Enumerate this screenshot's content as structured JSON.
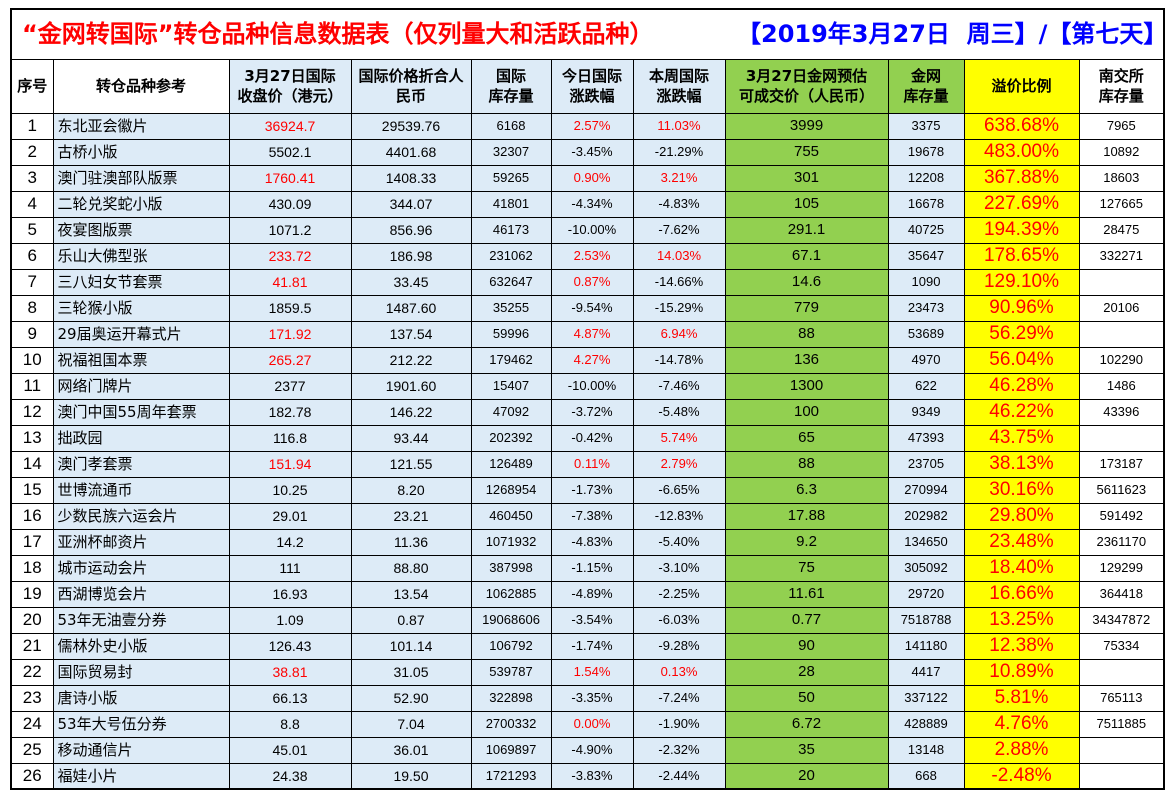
{
  "title": {
    "main": "“金网转国际”转仓品种信息数据表（仅列量大和活跃品种）",
    "date": "【2019年3月27日  周三】/【第七天】"
  },
  "table": {
    "headers": {
      "no": "序号",
      "name": "转仓品种参考",
      "close_hkd": "3月27日国际\n收盘价（港元）",
      "close_cny": "国际价格折合人\n民币",
      "intl_stock": "国际\n库存量",
      "day_chg": "今日国际\n涨跌幅",
      "week_chg": "本周国际\n涨跌幅",
      "jw_price": "3月27日金网预估\n可成交价（人民币）",
      "jw_stock": "金网\n库存量",
      "premium": "溢价比例",
      "nj_stock": "南交所\n库存量"
    },
    "rows": [
      {
        "no": "1",
        "name": "东北亚会徽片",
        "close_hkd": "36924.7",
        "close_cny": "29539.76",
        "intl_stock": "6168",
        "day_chg": "2.57%",
        "week_chg": "11.03%",
        "jw_price": "3999",
        "jw_stock": "3375",
        "premium": "638.68%",
        "nj_stock": "7965"
      },
      {
        "no": "2",
        "name": "古桥小版",
        "close_hkd": "5502.1",
        "close_cny": "4401.68",
        "intl_stock": "32307",
        "day_chg": "-3.45%",
        "week_chg": "-21.29%",
        "jw_price": "755",
        "jw_stock": "19678",
        "premium": "483.00%",
        "nj_stock": "10892"
      },
      {
        "no": "3",
        "name": "澳门驻澳部队版票",
        "close_hkd": "1760.41",
        "close_cny": "1408.33",
        "intl_stock": "59265",
        "day_chg": "0.90%",
        "week_chg": "3.21%",
        "jw_price": "301",
        "jw_stock": "12208",
        "premium": "367.88%",
        "nj_stock": "18603"
      },
      {
        "no": "4",
        "name": "二轮兑奖蛇小版",
        "close_hkd": "430.09",
        "close_cny": "344.07",
        "intl_stock": "41801",
        "day_chg": "-4.34%",
        "week_chg": "-4.83%",
        "jw_price": "105",
        "jw_stock": "16678",
        "premium": "227.69%",
        "nj_stock": "127665"
      },
      {
        "no": "5",
        "name": "夜宴图版票",
        "close_hkd": "1071.2",
        "close_cny": "856.96",
        "intl_stock": "46173",
        "day_chg": "-10.00%",
        "week_chg": "-7.62%",
        "jw_price": "291.1",
        "jw_stock": "40725",
        "premium": "194.39%",
        "nj_stock": "28475"
      },
      {
        "no": "6",
        "name": "乐山大佛型张",
        "close_hkd": "233.72",
        "close_cny": "186.98",
        "intl_stock": "231062",
        "day_chg": "2.53%",
        "week_chg": "14.03%",
        "jw_price": "67.1",
        "jw_stock": "35647",
        "premium": "178.65%",
        "nj_stock": "332271"
      },
      {
        "no": "7",
        "name": "三八妇女节套票",
        "close_hkd": "41.81",
        "close_cny": "33.45",
        "intl_stock": "632647",
        "day_chg": "0.87%",
        "week_chg": "-14.66%",
        "jw_price": "14.6",
        "jw_stock": "1090",
        "premium": "129.10%",
        "nj_stock": ""
      },
      {
        "no": "8",
        "name": "三轮猴小版",
        "close_hkd": "1859.5",
        "close_cny": "1487.60",
        "intl_stock": "35255",
        "day_chg": "-9.54%",
        "week_chg": "-15.29%",
        "jw_price": "779",
        "jw_stock": "23473",
        "premium": "90.96%",
        "nj_stock": "20106"
      },
      {
        "no": "9",
        "name": "29届奥运开幕式片",
        "close_hkd": "171.92",
        "close_cny": "137.54",
        "intl_stock": "59996",
        "day_chg": "4.87%",
        "week_chg": "6.94%",
        "jw_price": "88",
        "jw_stock": "53689",
        "premium": "56.29%",
        "nj_stock": ""
      },
      {
        "no": "10",
        "name": "祝福祖国本票",
        "close_hkd": "265.27",
        "close_cny": "212.22",
        "intl_stock": "179462",
        "day_chg": "4.27%",
        "week_chg": "-14.78%",
        "jw_price": "136",
        "jw_stock": "4970",
        "premium": "56.04%",
        "nj_stock": "102290"
      },
      {
        "no": "11",
        "name": "网络门牌片",
        "close_hkd": "2377",
        "close_cny": "1901.60",
        "intl_stock": "15407",
        "day_chg": "-10.00%",
        "week_chg": "-7.46%",
        "jw_price": "1300",
        "jw_stock": "622",
        "premium": "46.28%",
        "nj_stock": "1486"
      },
      {
        "no": "12",
        "name": "澳门中国55周年套票",
        "close_hkd": "182.78",
        "close_cny": "146.22",
        "intl_stock": "47092",
        "day_chg": "-3.72%",
        "week_chg": "-5.48%",
        "jw_price": "100",
        "jw_stock": "9349",
        "premium": "46.22%",
        "nj_stock": "43396"
      },
      {
        "no": "13",
        "name": "拙政园",
        "close_hkd": "116.8",
        "close_cny": "93.44",
        "intl_stock": "202392",
        "day_chg": "-0.42%",
        "week_chg": "5.74%",
        "jw_price": "65",
        "jw_stock": "47393",
        "premium": "43.75%",
        "nj_stock": ""
      },
      {
        "no": "14",
        "name": "澳门孝套票",
        "close_hkd": "151.94",
        "close_cny": "121.55",
        "intl_stock": "126489",
        "day_chg": "0.11%",
        "week_chg": "2.79%",
        "jw_price": "88",
        "jw_stock": "23705",
        "premium": "38.13%",
        "nj_stock": "173187"
      },
      {
        "no": "15",
        "name": "世博流通币",
        "close_hkd": "10.25",
        "close_cny": "8.20",
        "intl_stock": "1268954",
        "day_chg": "-1.73%",
        "week_chg": "-6.65%",
        "jw_price": "6.3",
        "jw_stock": "270994",
        "premium": "30.16%",
        "nj_stock": "5611623"
      },
      {
        "no": "16",
        "name": "少数民族六运会片",
        "close_hkd": "29.01",
        "close_cny": "23.21",
        "intl_stock": "460450",
        "day_chg": "-7.38%",
        "week_chg": "-12.83%",
        "jw_price": "17.88",
        "jw_stock": "202982",
        "premium": "29.80%",
        "nj_stock": "591492"
      },
      {
        "no": "17",
        "name": "亚洲杯邮资片",
        "close_hkd": "14.2",
        "close_cny": "11.36",
        "intl_stock": "1071932",
        "day_chg": "-4.83%",
        "week_chg": "-5.40%",
        "jw_price": "9.2",
        "jw_stock": "134650",
        "premium": "23.48%",
        "nj_stock": "2361170"
      },
      {
        "no": "18",
        "name": "城市运动会片",
        "close_hkd": "111",
        "close_cny": "88.80",
        "intl_stock": "387998",
        "day_chg": "-1.15%",
        "week_chg": "-3.10%",
        "jw_price": "75",
        "jw_stock": "305092",
        "premium": "18.40%",
        "nj_stock": "129299"
      },
      {
        "no": "19",
        "name": "西湖博览会片",
        "close_hkd": "16.93",
        "close_cny": "13.54",
        "intl_stock": "1062885",
        "day_chg": "-4.89%",
        "week_chg": "-2.25%",
        "jw_price": "11.61",
        "jw_stock": "29720",
        "premium": "16.66%",
        "nj_stock": "364418"
      },
      {
        "no": "20",
        "name": "53年无油壹分券",
        "close_hkd": "1.09",
        "close_cny": "0.87",
        "intl_stock": "19068606",
        "day_chg": "-3.54%",
        "week_chg": "-6.03%",
        "jw_price": "0.77",
        "jw_stock": "7518788",
        "premium": "13.25%",
        "nj_stock": "34347872"
      },
      {
        "no": "21",
        "name": "儒林外史小版",
        "close_hkd": "126.43",
        "close_cny": "101.14",
        "intl_stock": "106792",
        "day_chg": "-1.74%",
        "week_chg": "-9.28%",
        "jw_price": "90",
        "jw_stock": "141180",
        "premium": "12.38%",
        "nj_stock": "75334"
      },
      {
        "no": "22",
        "name": "国际贸易封",
        "close_hkd": "38.81",
        "close_cny": "31.05",
        "intl_stock": "539787",
        "day_chg": "1.54%",
        "week_chg": "0.13%",
        "jw_price": "28",
        "jw_stock": "4417",
        "premium": "10.89%",
        "nj_stock": ""
      },
      {
        "no": "23",
        "name": "唐诗小版",
        "close_hkd": "66.13",
        "close_cny": "52.90",
        "intl_stock": "322898",
        "day_chg": "-3.35%",
        "week_chg": "-7.24%",
        "jw_price": "50",
        "jw_stock": "337122",
        "premium": "5.81%",
        "nj_stock": "765113"
      },
      {
        "no": "24",
        "name": "53年大号伍分券",
        "close_hkd": "8.8",
        "close_cny": "7.04",
        "intl_stock": "2700332",
        "day_chg": "0.00%",
        "week_chg": "-1.90%",
        "jw_price": "6.72",
        "jw_stock": "428889",
        "premium": "4.76%",
        "nj_stock": "7511885"
      },
      {
        "no": "25",
        "name": "移动通信片",
        "close_hkd": "45.01",
        "close_cny": "36.01",
        "intl_stock": "1069897",
        "day_chg": "-4.90%",
        "week_chg": "-2.32%",
        "jw_price": "35",
        "jw_stock": "13148",
        "premium": "2.88%",
        "nj_stock": ""
      },
      {
        "no": "26",
        "name": "福娃小片",
        "close_hkd": "24.38",
        "close_cny": "19.50",
        "intl_stock": "1721293",
        "day_chg": "-3.83%",
        "week_chg": "-2.44%",
        "jw_price": "20",
        "jw_stock": "668",
        "premium": "-2.48%",
        "nj_stock": ""
      }
    ]
  },
  "colors": {
    "up": "#FF0000",
    "title": "#FF0000",
    "date": "#0000FF",
    "intl_bg": "#DDEBF7",
    "jw_bg": "#92D050",
    "premium_bg": "#FFFF00"
  }
}
